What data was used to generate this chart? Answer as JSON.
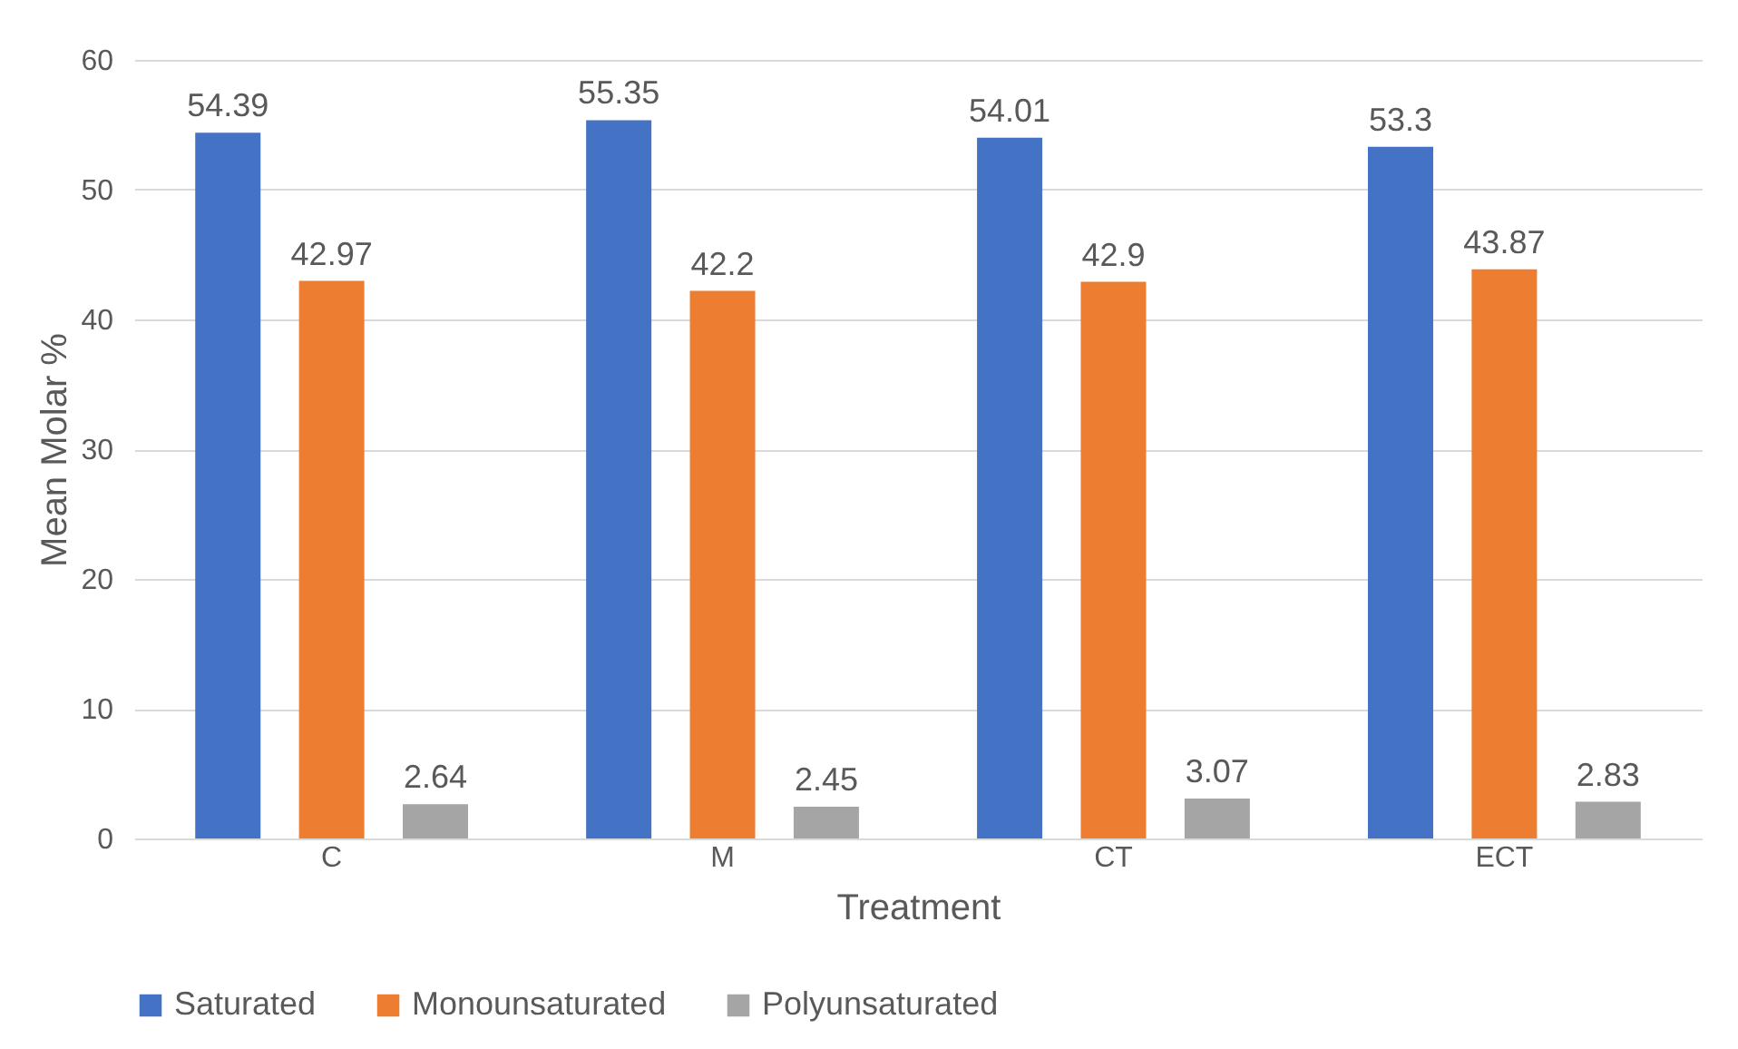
{
  "chart_data": {
    "type": "bar",
    "xlabel": "Treatment",
    "ylabel": "Mean Molar %",
    "categories": [
      "C",
      "M",
      "CT",
      "ECT"
    ],
    "series": [
      {
        "name": "Saturated",
        "color": "#4472c4",
        "values": [
          54.39,
          55.35,
          54.01,
          53.3
        ]
      },
      {
        "name": "Monounsaturated",
        "color": "#ed7d31",
        "values": [
          42.97,
          42.2,
          42.9,
          43.87
        ]
      },
      {
        "name": "Polyunsaturated",
        "color": "#a5a5a5",
        "values": [
          2.64,
          2.45,
          3.07,
          2.83
        ]
      }
    ],
    "ylim": [
      0,
      60
    ],
    "yticks": [
      0,
      10,
      20,
      30,
      40,
      50,
      60
    ],
    "grid": "y",
    "legend": "bottom",
    "data_labels": true
  }
}
